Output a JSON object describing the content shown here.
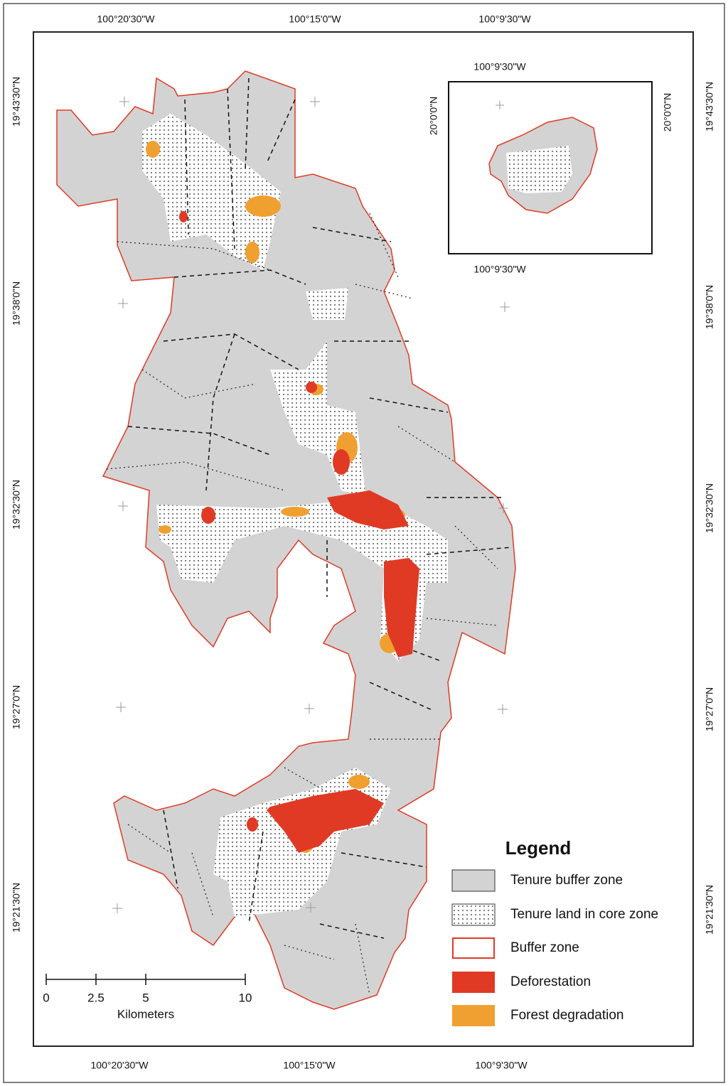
{
  "map": {
    "lon_labels_top": [
      "100°20'30\"W",
      "100°15'0\"W",
      "100°9'30\"W"
    ],
    "lon_labels_bottom": [
      "100°20'30\"W",
      "100°15'0\"W",
      "100°9'30\"W"
    ],
    "lat_labels_left": [
      "19°43'30\"N",
      "19°38'0\"N",
      "19°32'30\"N",
      "19°27'0\"N",
      "19°21'30\"N"
    ],
    "lat_labels_right": [
      "19°43'30\"N",
      "19°38'0\"N",
      "19°32'30\"N",
      "19°27'0\"N",
      "19°21'30\"N"
    ],
    "inset": {
      "top": "100°9'30\"W",
      "bottom": "100°9'30\"W",
      "left": "20°0'0\"N",
      "right": "20°0'0\"N"
    },
    "legend": {
      "title": "Legend",
      "items": [
        "Tenure buffer zone",
        "Tenure land in core zone",
        "Buffer zone",
        "Deforestation",
        "Forest degradation"
      ]
    },
    "scale_bar": {
      "ticks": [
        0,
        2.5,
        5,
        10
      ],
      "unit": "Kilometers"
    }
  }
}
